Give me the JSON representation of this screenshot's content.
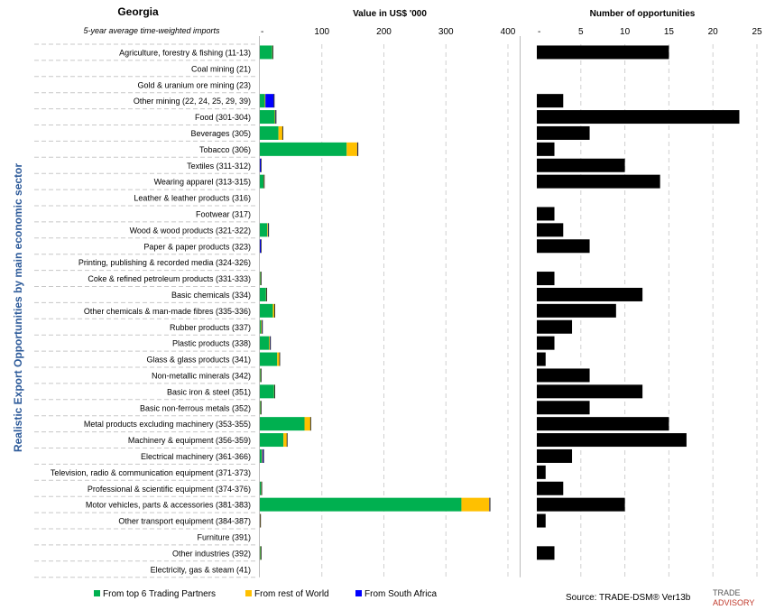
{
  "header": {
    "country": "Georgia",
    "subtitle": "5-year average time-weighted imports",
    "value_title": "Value in US$ '000",
    "count_title": "Number of opportunities",
    "side_label": "Realistic Export Opportunities by main economic sector"
  },
  "legend": [
    {
      "label": "From top 6 Trading Partners",
      "color": "#00b050"
    },
    {
      "label": "From rest of World",
      "color": "#ffc000"
    },
    {
      "label": "From South Africa",
      "color": "#0000ff"
    }
  ],
  "footer": {
    "source": "Source: TRADE-DSM® Ver13b",
    "logo_top": "TRADE",
    "logo_bottom": "ADVISORY"
  },
  "chart_data": [
    {
      "type": "bar",
      "orientation": "horizontal",
      "stacked": true,
      "title": "Value in US$ '000",
      "xlim": [
        0,
        400
      ],
      "ticks": [
        "-",
        "100",
        "200",
        "300",
        "400"
      ],
      "grid": true,
      "legend_position": "bottom",
      "categories": [
        "Agriculture, forestry & fishing (11-13)",
        "Coal mining (21)",
        "Gold & uranium ore mining (23)",
        "Other mining (22, 24, 25, 29, 39)",
        "Food (301-304)",
        "Beverages (305)",
        "Tobacco (306)",
        "Textiles (311-312)",
        "Wearing apparel (313-315)",
        "Leather & leather products (316)",
        "Footwear (317)",
        "Wood & wood products (321-322)",
        "Paper & paper products (323)",
        "Printing, publishing & recorded media (324-326)",
        "Coke & refined petroleum products (331-333)",
        "Basic chemicals (334)",
        "Other chemicals & man-made fibres (335-336)",
        "Rubber products (337)",
        "Plastic products (338)",
        "Glass & glass products (341)",
        "Non-metallic minerals (342)",
        "Basic iron & steel (351)",
        "Basic non-ferrous metals (352)",
        "Metal products excluding machinery (353-355)",
        "Machinery & equipment (356-359)",
        "Electrical machinery (361-366)",
        "Television, radio & communication equipment (371-373)",
        "Professional & scientific equipment (374-376)",
        "Motor vehicles, parts & accessories (381-383)",
        "Other transport equipment (384-387)",
        "Furniture (391)",
        "Other industries (392)",
        "Electricity, gas & steam (41)"
      ],
      "series": [
        {
          "name": "From top 6 Trading Partners",
          "color": "#00b050",
          "values": [
            20,
            0,
            0,
            8,
            24,
            30,
            140,
            0,
            6,
            0,
            0,
            12,
            0,
            0,
            1,
            10,
            21,
            2,
            15,
            28,
            1,
            23,
            1,
            72,
            38,
            3,
            0,
            2,
            325,
            0,
            0,
            1,
            0
          ]
        },
        {
          "name": "From rest of World",
          "color": "#ffc000",
          "values": [
            1,
            0,
            0,
            1,
            1,
            7,
            17,
            0,
            1,
            0,
            0,
            1,
            0,
            0,
            1,
            1,
            3,
            1,
            1,
            4,
            1,
            1,
            1,
            10,
            6,
            1,
            0,
            1,
            45,
            1,
            0,
            1,
            0
          ]
        },
        {
          "name": "From South Africa",
          "color": "#0000ff",
          "values": [
            0,
            0,
            0,
            14,
            1,
            0,
            1,
            2,
            0,
            0,
            0,
            1,
            2,
            0,
            0,
            0,
            0,
            1,
            1,
            0,
            0,
            0,
            0,
            0,
            0,
            2,
            0,
            0,
            1,
            0,
            0,
            0,
            0
          ]
        }
      ]
    },
    {
      "type": "bar",
      "orientation": "horizontal",
      "title": "Number of opportunities",
      "xlim": [
        0,
        25
      ],
      "ticks": [
        "-",
        "5",
        "10",
        "15",
        "20",
        "25"
      ],
      "grid": true,
      "color": "#000000",
      "values": [
        15,
        0,
        0,
        3,
        23,
        6,
        2,
        10,
        14,
        0,
        2,
        3,
        6,
        0,
        2,
        12,
        9,
        4,
        2,
        1,
        6,
        12,
        6,
        15,
        17,
        4,
        1,
        3,
        10,
        1,
        0,
        2,
        0
      ]
    }
  ]
}
